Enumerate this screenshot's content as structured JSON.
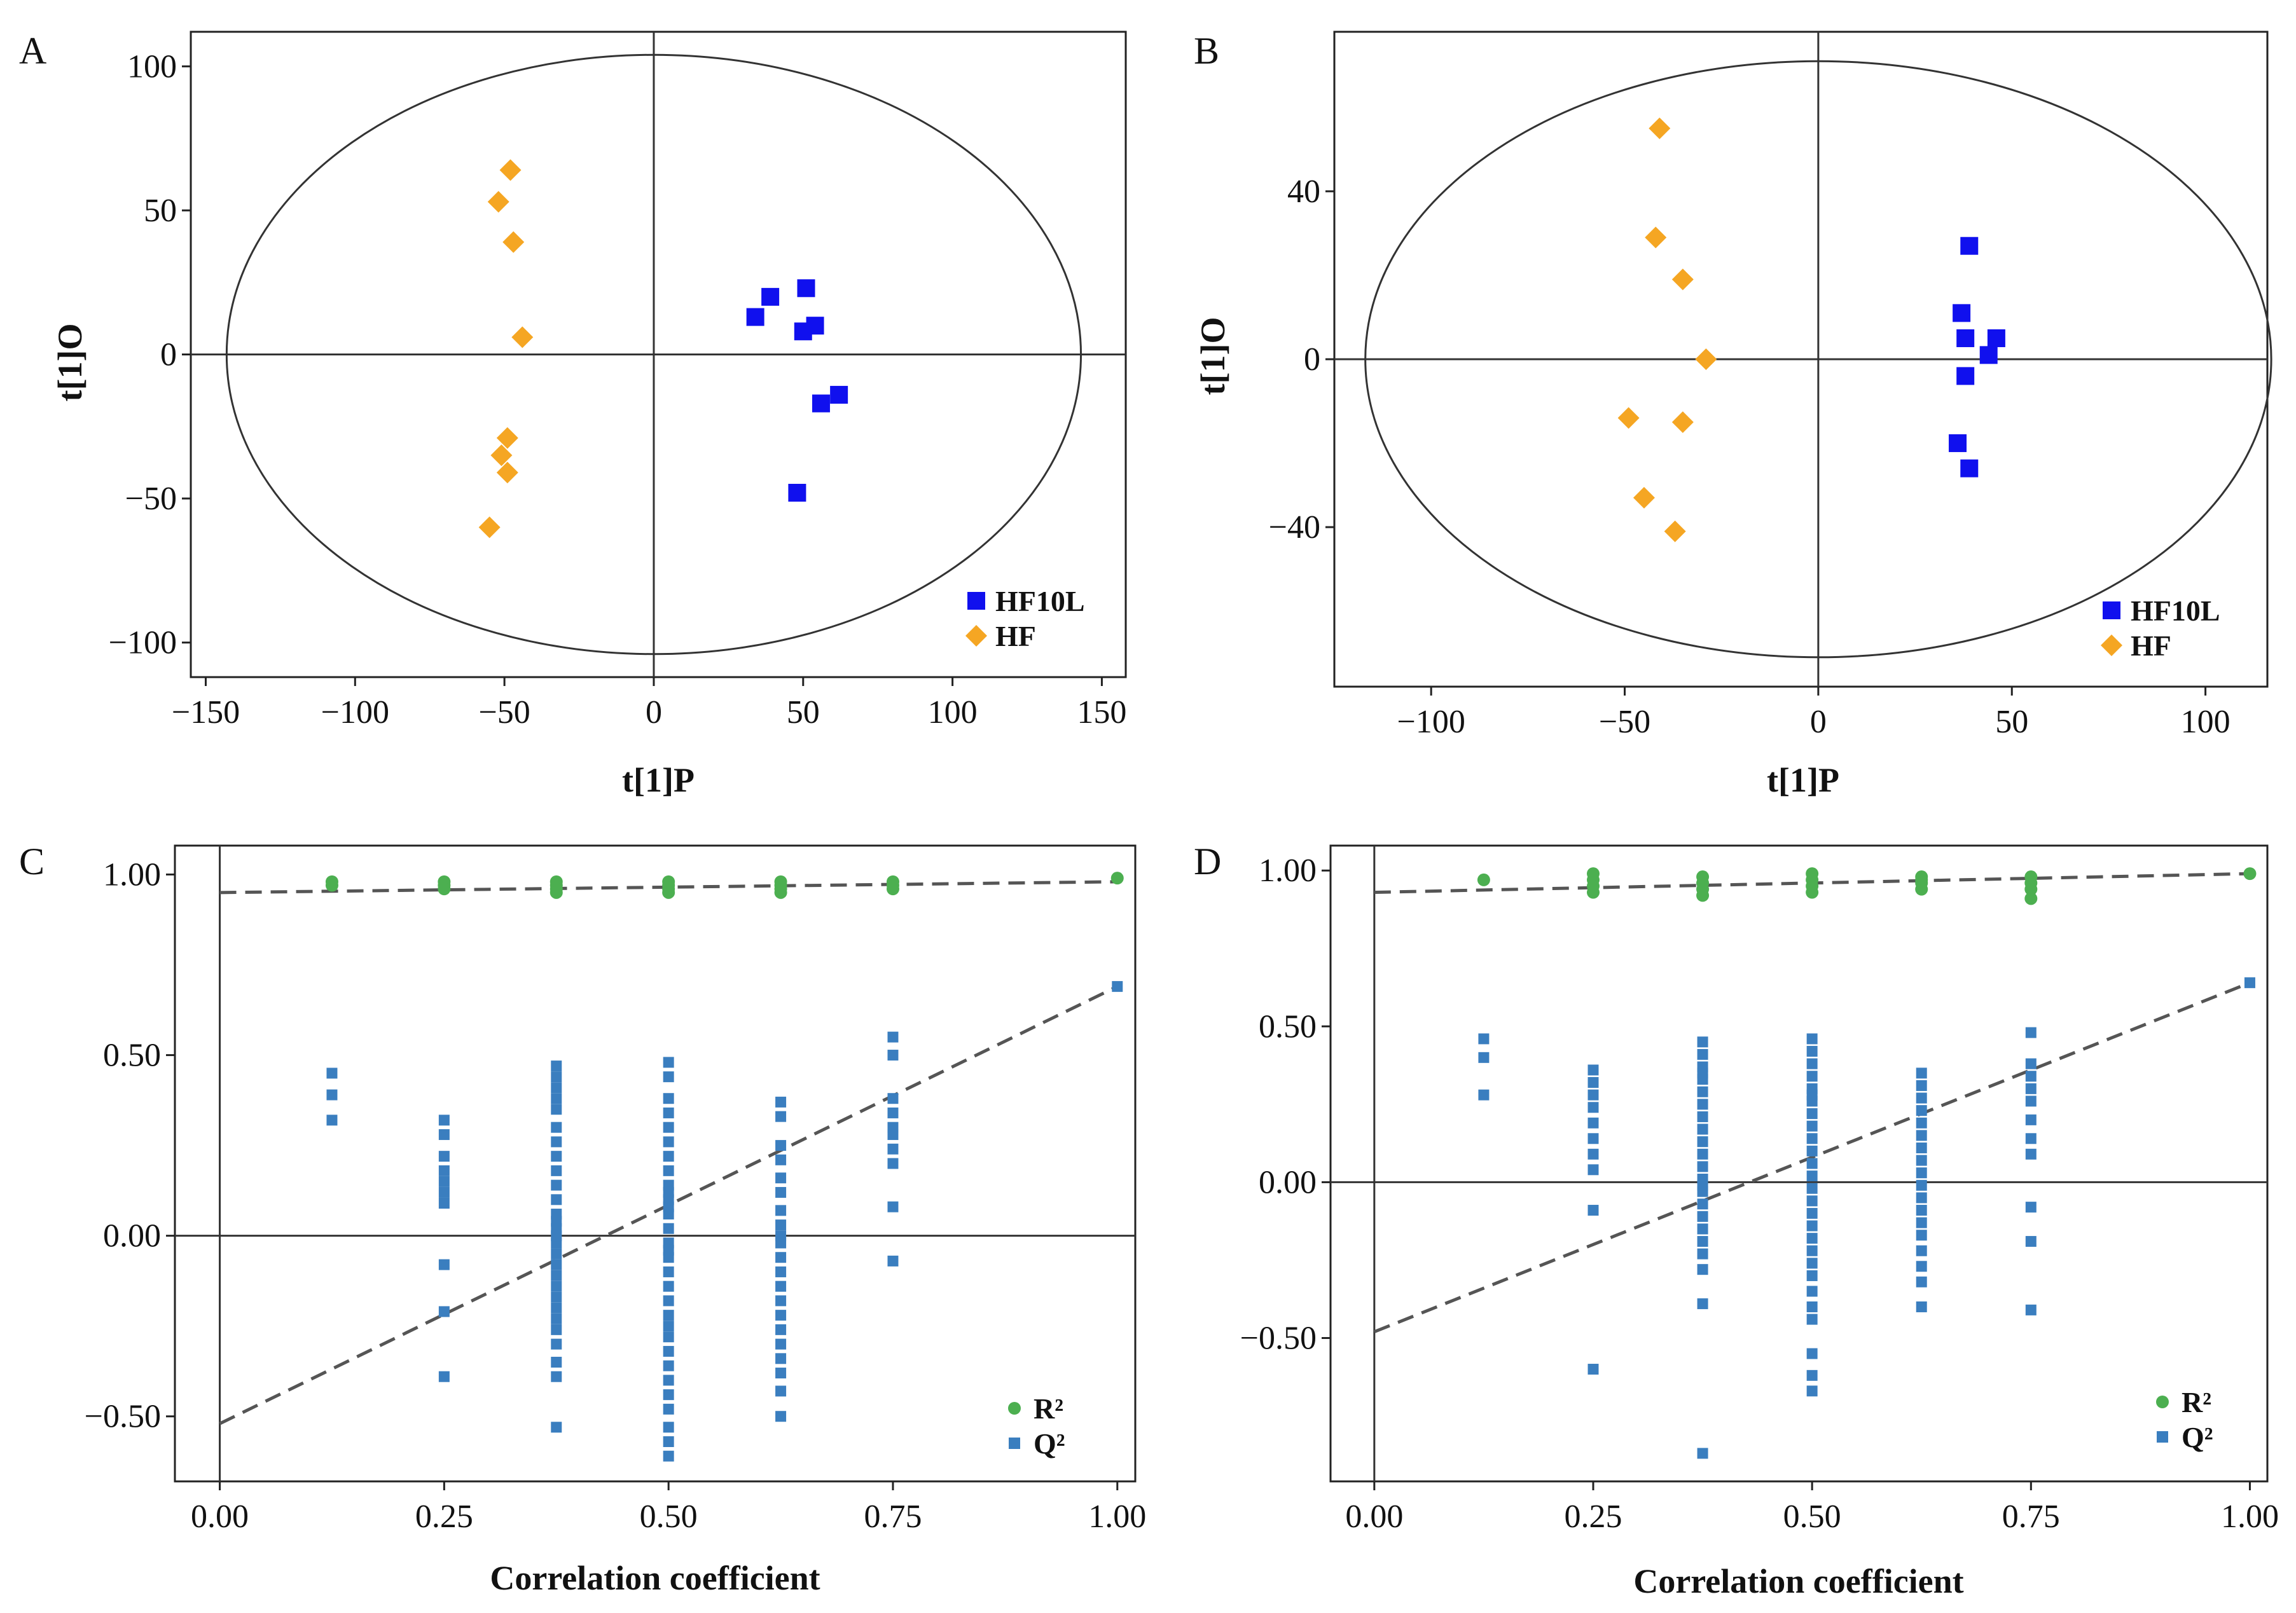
{
  "chart_data": [
    {
      "panel": "A",
      "type": "scatter",
      "subtype": "OPLS-DA score plot with confidence ellipse",
      "xlabel": "t[1]P",
      "ylabel": "t[1]O",
      "xlim": [
        -155,
        158
      ],
      "ylim": [
        -112,
        112
      ],
      "xticks": [
        -150,
        -100,
        -50,
        0,
        50,
        100,
        150
      ],
      "yticks": [
        -100,
        -50,
        0,
        50,
        100
      ],
      "xtick_labels": [
        "−150",
        "−100",
        "−50",
        "0",
        "50",
        "100",
        "150"
      ],
      "ytick_labels": [
        "−100",
        "−50",
        "0",
        "50",
        "100"
      ],
      "ellipse": {
        "rx": 143,
        "ry": 104
      },
      "legend_position": "bottom-right",
      "series": [
        {
          "name": "HF10L",
          "marker": "square",
          "color": "#1010ee",
          "x": [
            34,
            39,
            51,
            50,
            54,
            56,
            62,
            48
          ],
          "y": [
            13,
            20,
            23,
            8,
            10,
            -17,
            -14,
            -48
          ]
        },
        {
          "name": "HF",
          "marker": "diamond",
          "color": "#f5a623",
          "x": [
            -48,
            -52,
            -47,
            -44,
            -49,
            -51,
            -49,
            -55
          ],
          "y": [
            64,
            53,
            39,
            6,
            -29,
            -35,
            -41,
            -60
          ]
        }
      ]
    },
    {
      "panel": "B",
      "type": "scatter",
      "subtype": "OPLS-DA score plot with confidence ellipse",
      "xlabel": "t[1]P",
      "ylabel": "t[1]O",
      "xlim": [
        -125,
        116
      ],
      "ylim": [
        -78,
        78
      ],
      "xticks": [
        -100,
        -50,
        0,
        50,
        100
      ],
      "yticks": [
        -40,
        0,
        40
      ],
      "xtick_labels": [
        "−100",
        "−50",
        "0",
        "50",
        "100"
      ],
      "ytick_labels": [
        "−40",
        "0",
        "40"
      ],
      "ellipse": {
        "rx": 117,
        "ry": 71
      },
      "legend_position": "bottom-right",
      "series": [
        {
          "name": "HF10L",
          "marker": "square",
          "color": "#1010ee",
          "x": [
            39,
            37,
            38,
            46,
            44,
            38,
            36,
            39
          ],
          "y": [
            27,
            11,
            5,
            5,
            1,
            -4,
            -20,
            -26
          ]
        },
        {
          "name": "HF",
          "marker": "diamond",
          "color": "#f5a623",
          "x": [
            -41,
            -42,
            -35,
            -29,
            -49,
            -35,
            -45,
            -37
          ],
          "y": [
            55,
            29,
            19,
            0,
            -14,
            -15,
            -33,
            -41
          ]
        }
      ]
    },
    {
      "panel": "C",
      "type": "scatter",
      "subtype": "permutation test",
      "xlabel": "Correlation coefficient",
      "ylabel": "",
      "xlim": [
        -0.05,
        1.02
      ],
      "ylim": [
        -0.68,
        1.08
      ],
      "xticks": [
        0.0,
        0.25,
        0.5,
        0.75,
        1.0
      ],
      "yticks": [
        -0.5,
        0.0,
        0.5,
        1.0
      ],
      "xtick_labels": [
        "0.00",
        "0.25",
        "0.50",
        "0.75",
        "1.00"
      ],
      "ytick_labels": [
        "−0.50",
        "0.00",
        "0.50",
        "1.00"
      ],
      "legend_position": "bottom-right",
      "trendlines": [
        {
          "name": "R2",
          "x": [
            0.0,
            1.0
          ],
          "y": [
            0.95,
            0.98
          ]
        },
        {
          "name": "Q2",
          "x": [
            0.0,
            1.0
          ],
          "y": [
            -0.52,
            0.69
          ]
        }
      ],
      "series": [
        {
          "name": "R²",
          "marker": "circle",
          "color": "#4caf50",
          "x": [
            0.125,
            0.125,
            0.25,
            0.25,
            0.25,
            0.375,
            0.375,
            0.375,
            0.375,
            0.5,
            0.5,
            0.5,
            0.5,
            0.625,
            0.625,
            0.625,
            0.625,
            0.75,
            0.75,
            0.75,
            1.0
          ],
          "y": [
            0.98,
            0.97,
            0.98,
            0.97,
            0.96,
            0.98,
            0.97,
            0.96,
            0.95,
            0.98,
            0.97,
            0.96,
            0.95,
            0.98,
            0.97,
            0.96,
            0.95,
            0.98,
            0.97,
            0.96,
            0.99
          ]
        },
        {
          "name": "Q²",
          "marker": "square",
          "color": "#3a7ebf",
          "x": [
            0.125,
            0.125,
            0.125,
            0.25,
            0.25,
            0.25,
            0.25,
            0.25,
            0.25,
            0.25,
            0.25,
            0.25,
            0.25,
            0.375,
            0.375,
            0.375,
            0.375,
            0.375,
            0.375,
            0.375,
            0.375,
            0.375,
            0.375,
            0.375,
            0.375,
            0.375,
            0.375,
            0.375,
            0.375,
            0.375,
            0.375,
            0.375,
            0.375,
            0.375,
            0.375,
            0.375,
            0.375,
            0.375,
            0.375,
            0.375,
            0.375,
            0.5,
            0.5,
            0.5,
            0.5,
            0.5,
            0.5,
            0.5,
            0.5,
            0.5,
            0.5,
            0.5,
            0.5,
            0.5,
            0.5,
            0.5,
            0.5,
            0.5,
            0.5,
            0.5,
            0.5,
            0.5,
            0.5,
            0.5,
            0.5,
            0.5,
            0.5,
            0.5,
            0.5,
            0.5,
            0.5,
            0.5,
            0.625,
            0.625,
            0.625,
            0.625,
            0.625,
            0.625,
            0.625,
            0.625,
            0.625,
            0.625,
            0.625,
            0.625,
            0.625,
            0.625,
            0.625,
            0.625,
            0.625,
            0.625,
            0.625,
            0.625,
            0.625,
            0.75,
            0.75,
            0.75,
            0.75,
            0.75,
            0.75,
            0.75,
            0.75,
            0.75,
            0.75,
            1.0
          ],
          "y": [
            0.45,
            0.39,
            0.32,
            0.32,
            0.28,
            0.22,
            0.18,
            0.15,
            0.12,
            0.09,
            -0.08,
            -0.21,
            -0.39,
            0.47,
            0.44,
            0.41,
            0.38,
            0.35,
            0.3,
            0.26,
            0.22,
            0.18,
            0.14,
            0.1,
            0.06,
            0.02,
            -0.02,
            -0.05,
            -0.08,
            -0.11,
            -0.14,
            -0.17,
            -0.2,
            -0.23,
            -0.26,
            -0.3,
            -0.35,
            -0.39,
            -0.53,
            0.0,
            0.04,
            0.48,
            0.44,
            0.38,
            0.34,
            0.3,
            0.26,
            0.22,
            0.18,
            0.14,
            0.1,
            0.06,
            0.02,
            -0.02,
            -0.06,
            -0.1,
            -0.14,
            -0.18,
            -0.22,
            -0.28,
            -0.32,
            -0.36,
            -0.4,
            -0.44,
            -0.48,
            -0.53,
            -0.57,
            -0.61,
            0.08,
            -0.25,
            0.12,
            -0.04,
            0.37,
            0.33,
            0.25,
            0.21,
            0.16,
            0.12,
            0.07,
            0.03,
            -0.02,
            -0.06,
            -0.1,
            -0.14,
            -0.18,
            -0.22,
            -0.26,
            -0.3,
            -0.34,
            -0.38,
            -0.43,
            -0.5,
            0.0,
            0.55,
            0.5,
            0.38,
            0.34,
            0.3,
            0.24,
            0.2,
            0.08,
            -0.07,
            0.28,
            0.69
          ]
        }
      ]
    },
    {
      "panel": "D",
      "type": "scatter",
      "subtype": "permutation test",
      "xlabel": "Correlation coefficient",
      "ylabel": "",
      "xlim": [
        -0.05,
        1.02
      ],
      "ylim": [
        -0.96,
        1.08
      ],
      "xticks": [
        0.0,
        0.25,
        0.5,
        0.75,
        1.0
      ],
      "yticks": [
        -0.5,
        0.0,
        0.5,
        1.0
      ],
      "xtick_labels": [
        "0.00",
        "0.25",
        "0.50",
        "0.75",
        "1.00"
      ],
      "ytick_labels": [
        "−0.50",
        "0.00",
        "0.50",
        "1.00"
      ],
      "legend_position": "bottom-right",
      "trendlines": [
        {
          "name": "R2",
          "x": [
            0.0,
            1.0
          ],
          "y": [
            0.93,
            0.99
          ]
        },
        {
          "name": "Q2",
          "x": [
            0.0,
            1.0
          ],
          "y": [
            -0.48,
            0.64
          ]
        }
      ],
      "series": [
        {
          "name": "R²",
          "marker": "circle",
          "color": "#4caf50",
          "x": [
            0.125,
            0.25,
            0.25,
            0.25,
            0.25,
            0.375,
            0.375,
            0.375,
            0.375,
            0.5,
            0.5,
            0.5,
            0.5,
            0.625,
            0.625,
            0.625,
            0.625,
            0.75,
            0.75,
            0.75,
            0.75,
            1.0
          ],
          "y": [
            0.97,
            0.99,
            0.97,
            0.95,
            0.93,
            0.98,
            0.96,
            0.94,
            0.92,
            0.99,
            0.97,
            0.95,
            0.93,
            0.98,
            0.96,
            0.94,
            0.97,
            0.98,
            0.96,
            0.94,
            0.91,
            0.99
          ]
        },
        {
          "name": "Q²",
          "marker": "square",
          "color": "#3a7ebf",
          "x": [
            0.125,
            0.125,
            0.125,
            0.25,
            0.25,
            0.25,
            0.25,
            0.25,
            0.25,
            0.25,
            0.25,
            0.25,
            0.25,
            0.375,
            0.375,
            0.375,
            0.375,
            0.375,
            0.375,
            0.375,
            0.375,
            0.375,
            0.375,
            0.375,
            0.375,
            0.375,
            0.375,
            0.375,
            0.375,
            0.375,
            0.375,
            0.375,
            0.375,
            0.375,
            0.375,
            0.375,
            0.5,
            0.5,
            0.5,
            0.5,
            0.5,
            0.5,
            0.5,
            0.5,
            0.5,
            0.5,
            0.5,
            0.5,
            0.5,
            0.5,
            0.5,
            0.5,
            0.5,
            0.5,
            0.5,
            0.5,
            0.5,
            0.5,
            0.5,
            0.5,
            0.5,
            0.5,
            0.5,
            0.625,
            0.625,
            0.625,
            0.625,
            0.625,
            0.625,
            0.625,
            0.625,
            0.625,
            0.625,
            0.625,
            0.625,
            0.625,
            0.625,
            0.625,
            0.625,
            0.625,
            0.625,
            0.75,
            0.75,
            0.75,
            0.75,
            0.75,
            0.75,
            0.75,
            0.75,
            0.75,
            0.75,
            0.75,
            1.0
          ],
          "y": [
            0.46,
            0.4,
            0.28,
            0.36,
            0.32,
            0.28,
            0.24,
            0.19,
            0.14,
            0.09,
            0.04,
            -0.09,
            -0.6,
            0.45,
            0.41,
            0.37,
            0.33,
            0.29,
            0.25,
            0.21,
            0.17,
            0.13,
            0.09,
            0.05,
            0.01,
            -0.03,
            -0.07,
            -0.11,
            -0.15,
            -0.19,
            -0.23,
            -0.28,
            -0.39,
            -0.87,
            0.35,
            -0.01,
            0.46,
            0.42,
            0.38,
            0.34,
            0.3,
            0.26,
            0.22,
            0.18,
            0.14,
            0.1,
            0.06,
            0.02,
            -0.02,
            -0.06,
            -0.1,
            -0.14,
            -0.18,
            -0.22,
            -0.26,
            -0.3,
            -0.35,
            -0.4,
            -0.44,
            -0.55,
            -0.62,
            -0.67,
            0.28,
            0.35,
            0.31,
            0.27,
            0.23,
            0.19,
            0.15,
            0.11,
            0.07,
            0.03,
            -0.01,
            -0.05,
            -0.09,
            -0.13,
            -0.17,
            -0.22,
            -0.27,
            -0.32,
            -0.4,
            0.48,
            0.38,
            0.34,
            0.3,
            0.26,
            0.2,
            0.14,
            0.09,
            -0.08,
            -0.19,
            -0.41,
            0.64
          ]
        }
      ]
    }
  ]
}
